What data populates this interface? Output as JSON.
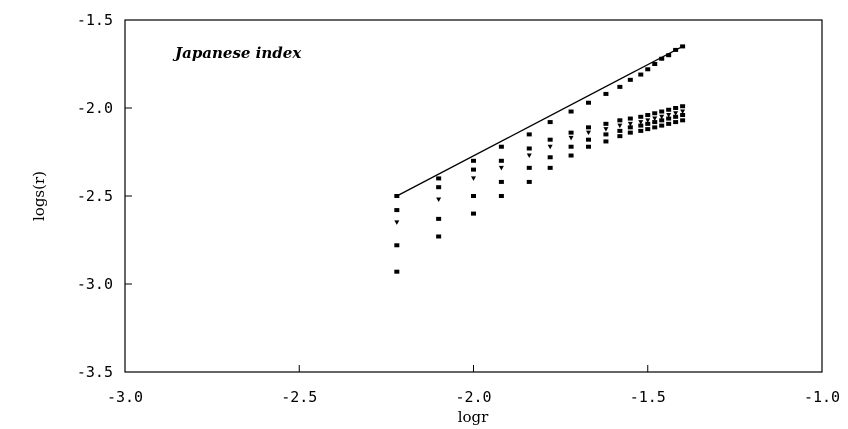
{
  "chart_data": {
    "type": "scatter",
    "title": "Japanese index",
    "xlabel": "logr",
    "ylabel": "logs(r)",
    "xlim": [
      -3.0,
      -1.0
    ],
    "ylim": [
      -3.5,
      -1.5
    ],
    "xticks": [
      "-3.0",
      "-2.5",
      "-2.0",
      "-1.5",
      "-1.0"
    ],
    "yticks": [
      "-1.5",
      "-2.0",
      "-2.5",
      "-3.0",
      "-3.5"
    ],
    "grid": false,
    "x": [
      -2.22,
      -2.1,
      -2.0,
      -1.92,
      -1.84,
      -1.78,
      -1.72,
      -1.67,
      -1.62,
      -1.58,
      -1.55,
      -1.52,
      -1.5,
      -1.48,
      -1.46,
      -1.44,
      -1.42,
      -1.4
    ],
    "series": [
      {
        "marker": "square",
        "values": [
          -2.5,
          -2.4,
          -2.3,
          -2.22,
          -2.15,
          -2.08,
          -2.02,
          -1.97,
          -1.92,
          -1.88,
          -1.84,
          -1.81,
          -1.78,
          -1.75,
          -1.72,
          -1.7,
          -1.67,
          -1.65
        ]
      },
      {
        "marker": "square",
        "values": [
          -2.58,
          -2.45,
          -2.35,
          -2.3,
          -2.23,
          -2.18,
          -2.14,
          -2.11,
          -2.09,
          -2.07,
          -2.06,
          -2.05,
          -2.04,
          -2.03,
          -2.02,
          -2.01,
          -2.0,
          -1.99
        ]
      },
      {
        "marker": "triangle",
        "values": [
          -2.65,
          -2.52,
          -2.4,
          -2.34,
          -2.27,
          -2.22,
          -2.17,
          -2.14,
          -2.12,
          -2.1,
          -2.09,
          -2.08,
          -2.07,
          -2.06,
          -2.05,
          -2.04,
          -2.03,
          -2.02
        ]
      },
      {
        "marker": "square",
        "values": [
          -2.78,
          -2.63,
          -2.5,
          -2.42,
          -2.34,
          -2.28,
          -2.22,
          -2.18,
          -2.15,
          -2.13,
          -2.11,
          -2.1,
          -2.09,
          -2.08,
          -2.07,
          -2.06,
          -2.05,
          -2.04
        ]
      },
      {
        "marker": "square",
        "values": [
          -2.93,
          -2.73,
          -2.6,
          -2.5,
          -2.42,
          -2.34,
          -2.27,
          -2.22,
          -2.19,
          -2.16,
          -2.14,
          -2.13,
          -2.12,
          -2.11,
          -2.1,
          -2.09,
          -2.08,
          -2.07
        ]
      }
    ],
    "fit_line": {
      "x": [
        -2.22,
        -1.4
      ],
      "y": [
        -2.5,
        -1.65
      ]
    }
  }
}
